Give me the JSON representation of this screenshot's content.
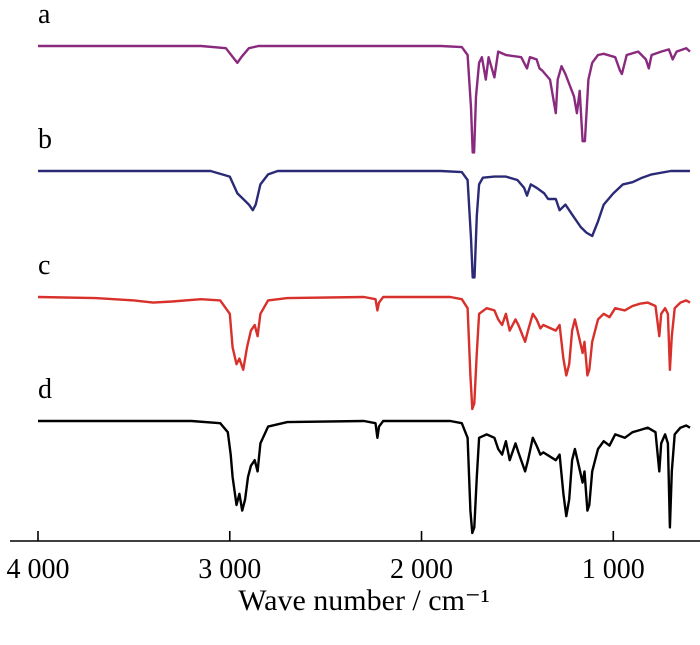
{
  "chart_data": {
    "type": "line",
    "title": "",
    "xlabel": "Wave number / cm⁻¹",
    "ylabel": "",
    "xlim": [
      4000,
      600
    ],
    "x_reversed": true,
    "x_ticks": [
      4000,
      3000,
      2000,
      1000
    ],
    "x_tick_labels": [
      "4 000",
      "3 000",
      "2 000",
      "1 000"
    ],
    "y_axis_shown": false,
    "grid": false,
    "legend": "none",
    "layout": "stacked offset spectra, a on top",
    "baselines": [
      0,
      -1,
      -2,
      -3
    ],
    "series": [
      {
        "name": "a",
        "color": "#8a2a7e",
        "points": [
          [
            4000,
            0
          ],
          [
            3150,
            0
          ],
          [
            3020,
            -0.02
          ],
          [
            2975,
            -0.12
          ],
          [
            2960,
            -0.15
          ],
          [
            2940,
            -0.1
          ],
          [
            2900,
            -0.02
          ],
          [
            2850,
            0
          ],
          [
            1900,
            0
          ],
          [
            1790,
            -0.01
          ],
          [
            1760,
            -0.08
          ],
          [
            1742,
            -0.55
          ],
          [
            1733,
            -0.95
          ],
          [
            1726,
            -0.95
          ],
          [
            1716,
            -0.45
          ],
          [
            1700,
            -0.15
          ],
          [
            1685,
            -0.1
          ],
          [
            1665,
            -0.3
          ],
          [
            1650,
            -0.1
          ],
          [
            1620,
            -0.28
          ],
          [
            1600,
            -0.05
          ],
          [
            1560,
            -0.08
          ],
          [
            1480,
            -0.1
          ],
          [
            1450,
            -0.2
          ],
          [
            1435,
            -0.1
          ],
          [
            1400,
            -0.12
          ],
          [
            1385,
            -0.2
          ],
          [
            1370,
            -0.22
          ],
          [
            1330,
            -0.3
          ],
          [
            1300,
            -0.6
          ],
          [
            1290,
            -0.3
          ],
          [
            1270,
            -0.18
          ],
          [
            1250,
            -0.25
          ],
          [
            1205,
            -0.45
          ],
          [
            1190,
            -0.6
          ],
          [
            1175,
            -0.4
          ],
          [
            1160,
            -0.85
          ],
          [
            1148,
            -0.85
          ],
          [
            1130,
            -0.3
          ],
          [
            1110,
            -0.15
          ],
          [
            1080,
            -0.08
          ],
          [
            1050,
            -0.07
          ],
          [
            990,
            -0.1
          ],
          [
            965,
            -0.22
          ],
          [
            955,
            -0.25
          ],
          [
            930,
            -0.08
          ],
          [
            870,
            -0.05
          ],
          [
            830,
            -0.12
          ],
          [
            815,
            -0.2
          ],
          [
            800,
            -0.08
          ],
          [
            750,
            -0.05
          ],
          [
            710,
            -0.03
          ],
          [
            690,
            -0.12
          ],
          [
            670,
            -0.05
          ],
          [
            620,
            -0.02
          ],
          [
            600,
            -0.05
          ]
        ]
      },
      {
        "name": "b",
        "color": "#2b2a77",
        "points": [
          [
            4000,
            0
          ],
          [
            3100,
            0
          ],
          [
            3000,
            -0.05
          ],
          [
            2960,
            -0.2
          ],
          [
            2930,
            -0.25
          ],
          [
            2900,
            -0.3
          ],
          [
            2880,
            -0.35
          ],
          [
            2865,
            -0.3
          ],
          [
            2840,
            -0.12
          ],
          [
            2800,
            -0.03
          ],
          [
            2750,
            0
          ],
          [
            1900,
            0
          ],
          [
            1790,
            -0.01
          ],
          [
            1760,
            -0.08
          ],
          [
            1742,
            -0.6
          ],
          [
            1733,
            -0.95
          ],
          [
            1724,
            -0.95
          ],
          [
            1712,
            -0.4
          ],
          [
            1700,
            -0.12
          ],
          [
            1680,
            -0.06
          ],
          [
            1620,
            -0.05
          ],
          [
            1560,
            -0.05
          ],
          [
            1500,
            -0.08
          ],
          [
            1465,
            -0.15
          ],
          [
            1450,
            -0.22
          ],
          [
            1430,
            -0.12
          ],
          [
            1400,
            -0.15
          ],
          [
            1360,
            -0.2
          ],
          [
            1340,
            -0.25
          ],
          [
            1300,
            -0.25
          ],
          [
            1280,
            -0.35
          ],
          [
            1250,
            -0.3
          ],
          [
            1210,
            -0.4
          ],
          [
            1170,
            -0.5
          ],
          [
            1140,
            -0.55
          ],
          [
            1110,
            -0.58
          ],
          [
            1080,
            -0.45
          ],
          [
            1050,
            -0.3
          ],
          [
            1000,
            -0.2
          ],
          [
            950,
            -0.12
          ],
          [
            900,
            -0.1
          ],
          [
            850,
            -0.06
          ],
          [
            800,
            -0.03
          ],
          [
            700,
            0
          ],
          [
            600,
            0
          ]
        ]
      },
      {
        "name": "c",
        "color": "#d8302b",
        "points": [
          [
            4000,
            0
          ],
          [
            3700,
            -0.01
          ],
          [
            3500,
            -0.03
          ],
          [
            3400,
            -0.05
          ],
          [
            3300,
            -0.04
          ],
          [
            3150,
            -0.02
          ],
          [
            3050,
            -0.03
          ],
          [
            3000,
            -0.15
          ],
          [
            2985,
            -0.45
          ],
          [
            2965,
            -0.6
          ],
          [
            2950,
            -0.55
          ],
          [
            2930,
            -0.65
          ],
          [
            2910,
            -0.45
          ],
          [
            2890,
            -0.3
          ],
          [
            2870,
            -0.25
          ],
          [
            2855,
            -0.35
          ],
          [
            2840,
            -0.15
          ],
          [
            2800,
            -0.03
          ],
          [
            2700,
            -0.01
          ],
          [
            2300,
            0
          ],
          [
            2240,
            -0.02
          ],
          [
            2230,
            -0.12
          ],
          [
            2222,
            -0.05
          ],
          [
            2200,
            0
          ],
          [
            1850,
            0
          ],
          [
            1790,
            -0.02
          ],
          [
            1760,
            -0.1
          ],
          [
            1745,
            -0.7
          ],
          [
            1735,
            -1
          ],
          [
            1725,
            -0.95
          ],
          [
            1712,
            -0.5
          ],
          [
            1700,
            -0.15
          ],
          [
            1660,
            -0.1
          ],
          [
            1620,
            -0.12
          ],
          [
            1600,
            -0.2
          ],
          [
            1580,
            -0.25
          ],
          [
            1560,
            -0.15
          ],
          [
            1540,
            -0.3
          ],
          [
            1510,
            -0.2
          ],
          [
            1495,
            -0.25
          ],
          [
            1460,
            -0.4
          ],
          [
            1445,
            -0.3
          ],
          [
            1420,
            -0.15
          ],
          [
            1400,
            -0.2
          ],
          [
            1380,
            -0.28
          ],
          [
            1365,
            -0.25
          ],
          [
            1300,
            -0.3
          ],
          [
            1280,
            -0.25
          ],
          [
            1260,
            -0.55
          ],
          [
            1245,
            -0.7
          ],
          [
            1230,
            -0.6
          ],
          [
            1215,
            -0.3
          ],
          [
            1200,
            -0.2
          ],
          [
            1180,
            -0.35
          ],
          [
            1160,
            -0.5
          ],
          [
            1150,
            -0.4
          ],
          [
            1135,
            -0.7
          ],
          [
            1125,
            -0.65
          ],
          [
            1110,
            -0.4
          ],
          [
            1080,
            -0.2
          ],
          [
            1050,
            -0.15
          ],
          [
            1020,
            -0.18
          ],
          [
            990,
            -0.1
          ],
          [
            940,
            -0.12
          ],
          [
            900,
            -0.08
          ],
          [
            860,
            -0.06
          ],
          [
            820,
            -0.05
          ],
          [
            780,
            -0.08
          ],
          [
            760,
            -0.35
          ],
          [
            750,
            -0.15
          ],
          [
            730,
            -0.1
          ],
          [
            715,
            -0.15
          ],
          [
            705,
            -0.65
          ],
          [
            695,
            -0.35
          ],
          [
            680,
            -0.1
          ],
          [
            650,
            -0.05
          ],
          [
            620,
            -0.03
          ],
          [
            600,
            -0.05
          ]
        ]
      },
      {
        "name": "d",
        "color": "#000000",
        "points": [
          [
            4000,
            0
          ],
          [
            3200,
            0
          ],
          [
            3050,
            -0.02
          ],
          [
            3010,
            -0.1
          ],
          [
            2995,
            -0.3
          ],
          [
            2985,
            -0.5
          ],
          [
            2965,
            -0.75
          ],
          [
            2950,
            -0.65
          ],
          [
            2935,
            -0.8
          ],
          [
            2920,
            -0.7
          ],
          [
            2905,
            -0.5
          ],
          [
            2890,
            -0.4
          ],
          [
            2870,
            -0.35
          ],
          [
            2855,
            -0.45
          ],
          [
            2840,
            -0.2
          ],
          [
            2800,
            -0.05
          ],
          [
            2700,
            -0.01
          ],
          [
            2300,
            0
          ],
          [
            2240,
            -0.02
          ],
          [
            2230,
            -0.15
          ],
          [
            2222,
            -0.05
          ],
          [
            2200,
            0
          ],
          [
            1850,
            0
          ],
          [
            1790,
            -0.02
          ],
          [
            1760,
            -0.15
          ],
          [
            1745,
            -0.8
          ],
          [
            1735,
            -1
          ],
          [
            1725,
            -0.95
          ],
          [
            1712,
            -0.5
          ],
          [
            1700,
            -0.15
          ],
          [
            1660,
            -0.12
          ],
          [
            1620,
            -0.15
          ],
          [
            1600,
            -0.25
          ],
          [
            1580,
            -0.3
          ],
          [
            1560,
            -0.18
          ],
          [
            1540,
            -0.35
          ],
          [
            1510,
            -0.2
          ],
          [
            1495,
            -0.28
          ],
          [
            1460,
            -0.45
          ],
          [
            1445,
            -0.35
          ],
          [
            1420,
            -0.15
          ],
          [
            1400,
            -0.22
          ],
          [
            1380,
            -0.3
          ],
          [
            1365,
            -0.28
          ],
          [
            1300,
            -0.35
          ],
          [
            1280,
            -0.3
          ],
          [
            1260,
            -0.65
          ],
          [
            1245,
            -0.85
          ],
          [
            1230,
            -0.7
          ],
          [
            1215,
            -0.35
          ],
          [
            1200,
            -0.25
          ],
          [
            1180,
            -0.4
          ],
          [
            1160,
            -0.55
          ],
          [
            1150,
            -0.45
          ],
          [
            1135,
            -0.8
          ],
          [
            1125,
            -0.75
          ],
          [
            1110,
            -0.45
          ],
          [
            1080,
            -0.25
          ],
          [
            1050,
            -0.18
          ],
          [
            1020,
            -0.22
          ],
          [
            990,
            -0.12
          ],
          [
            940,
            -0.15
          ],
          [
            900,
            -0.1
          ],
          [
            860,
            -0.08
          ],
          [
            820,
            -0.06
          ],
          [
            780,
            -0.1
          ],
          [
            760,
            -0.45
          ],
          [
            750,
            -0.2
          ],
          [
            730,
            -0.12
          ],
          [
            715,
            -0.2
          ],
          [
            705,
            -0.95
          ],
          [
            695,
            -0.45
          ],
          [
            680,
            -0.12
          ],
          [
            650,
            -0.06
          ],
          [
            620,
            -0.04
          ],
          [
            600,
            -0.06
          ]
        ]
      }
    ]
  }
}
